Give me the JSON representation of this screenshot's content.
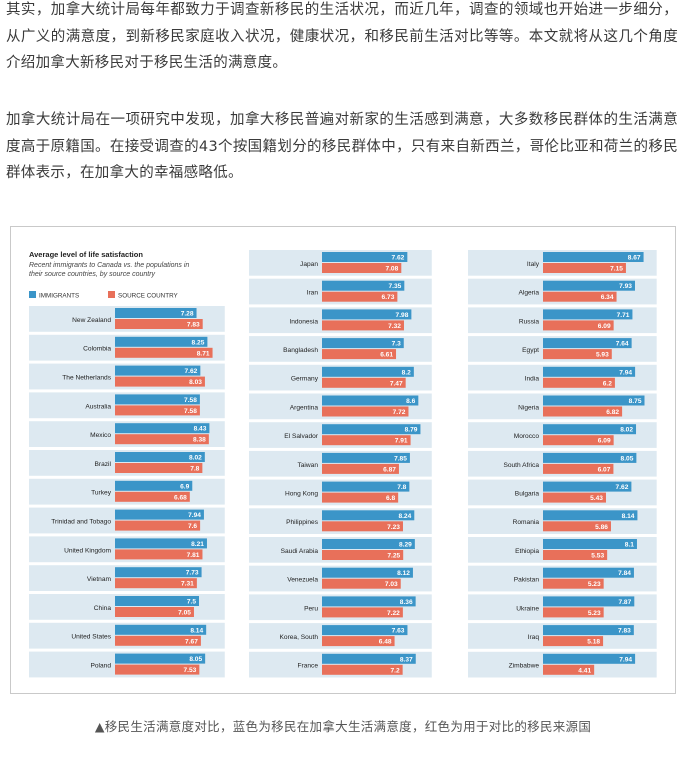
{
  "article": {
    "paragraph1": "其实，加拿大统计局每年都致力于调查新移民的生活状况，而近几年，调查的领域也开始进一步细分，从广义的满意度，到新移民家庭收入状况，健康状况，和移民前生活对比等等。本文就将从这几个角度介绍加拿大新移民对于移民生活的满意度。",
    "paragraph2": "加拿大统计局在一项研究中发现，加拿大移民普遍对新家的生活感到满意，大多数移民群体的生活满意度高于原籍国。在接受调查的43个按国籍划分的移民群体中，只有来自新西兰，哥伦比亚和荷兰的移民群体表示，在加拿大的幸福感略低。"
  },
  "caption": "▲移民生活满意度对比，蓝色为移民在加拿大生活满意度，红色为用于对比的移民来源国",
  "colors": {
    "immigrants": "#3b95c8",
    "source": "#e8705a",
    "band": "#dde9f1"
  },
  "chart_data": {
    "type": "bar",
    "title": "Average level of life satisfaction",
    "subtitle": [
      "Recent immigrants to Canada vs. the populations in",
      "their source countries, by source country"
    ],
    "legend": [
      "IMMIGRANTS",
      "SOURCE COUNTRY"
    ],
    "xlim": [
      0,
      10
    ],
    "series": [
      {
        "name": "IMMIGRANTS",
        "color": "#3b95c8"
      },
      {
        "name": "SOURCE COUNTRY",
        "color": "#e8705a"
      }
    ],
    "columns": [
      [
        {
          "country": "New Zealand",
          "immigrants": 7.28,
          "source": 7.83
        },
        {
          "country": "Colombia",
          "immigrants": 8.25,
          "source": 8.71
        },
        {
          "country": "The Netherlands",
          "immigrants": 7.62,
          "source": 8.03
        },
        {
          "country": "Australia",
          "immigrants": 7.58,
          "source": 7.58
        },
        {
          "country": "Mexico",
          "immigrants": 8.43,
          "source": 8.38
        },
        {
          "country": "Brazil",
          "immigrants": 8.02,
          "source": 7.8
        },
        {
          "country": "Turkey",
          "immigrants": 6.9,
          "source": 6.68
        },
        {
          "country": "Trinidad and Tobago",
          "immigrants": 7.94,
          "source": 7.6
        },
        {
          "country": "United Kingdom",
          "immigrants": 8.21,
          "source": 7.81
        },
        {
          "country": "Vietnam",
          "immigrants": 7.73,
          "source": 7.31
        },
        {
          "country": "China",
          "immigrants": 7.5,
          "source": 7.05
        },
        {
          "country": "United States",
          "immigrants": 8.14,
          "source": 7.67
        },
        {
          "country": "Poland",
          "immigrants": 8.05,
          "source": 7.53
        }
      ],
      [
        {
          "country": "Japan",
          "immigrants": 7.62,
          "source": 7.08
        },
        {
          "country": "Iran",
          "immigrants": 7.35,
          "source": 6.73
        },
        {
          "country": "Indonesia",
          "immigrants": 7.98,
          "source": 7.32
        },
        {
          "country": "Bangladesh",
          "immigrants": 7.3,
          "source": 6.61
        },
        {
          "country": "Germany",
          "immigrants": 8.2,
          "source": 7.47
        },
        {
          "country": "Argentina",
          "immigrants": 8.6,
          "source": 7.72
        },
        {
          "country": "El Salvador",
          "immigrants": 8.79,
          "source": 7.91
        },
        {
          "country": "Taiwan",
          "immigrants": 7.85,
          "source": 6.87
        },
        {
          "country": "Hong Kong",
          "immigrants": 7.8,
          "source": 6.8
        },
        {
          "country": "Philippines",
          "immigrants": 8.24,
          "source": 7.23
        },
        {
          "country": "Saudi Arabia",
          "immigrants": 8.29,
          "source": 7.25
        },
        {
          "country": "Venezuela",
          "immigrants": 8.12,
          "source": 7.03
        },
        {
          "country": "Peru",
          "immigrants": 8.36,
          "source": 7.22
        },
        {
          "country": "Korea, South",
          "immigrants": 7.63,
          "source": 6.48
        },
        {
          "country": "France",
          "immigrants": 8.37,
          "source": 7.2
        }
      ],
      [
        {
          "country": "Italy",
          "immigrants": 8.67,
          "source": 7.15
        },
        {
          "country": "Algeria",
          "immigrants": 7.93,
          "source": 6.34
        },
        {
          "country": "Russia",
          "immigrants": 7.71,
          "source": 6.09
        },
        {
          "country": "Egypt",
          "immigrants": 7.64,
          "source": 5.93
        },
        {
          "country": "India",
          "immigrants": 7.94,
          "source": 6.2
        },
        {
          "country": "Nigeria",
          "immigrants": 8.75,
          "source": 6.82
        },
        {
          "country": "Morocco",
          "immigrants": 8.02,
          "source": 6.09
        },
        {
          "country": "South Africa",
          "immigrants": 8.05,
          "source": 6.07
        },
        {
          "country": "Bulgaria",
          "immigrants": 7.62,
          "source": 5.43
        },
        {
          "country": "Romania",
          "immigrants": 8.14,
          "source": 5.86
        },
        {
          "country": "Ethiopia",
          "immigrants": 8.1,
          "source": 5.53
        },
        {
          "country": "Pakistan",
          "immigrants": 7.84,
          "source": 5.23
        },
        {
          "country": "Ukraine",
          "immigrants": 7.87,
          "source": 5.23
        },
        {
          "country": "Iraq",
          "immigrants": 7.83,
          "source": 5.18
        },
        {
          "country": "Zimbabwe",
          "immigrants": 7.94,
          "source": 4.41
        }
      ]
    ]
  }
}
